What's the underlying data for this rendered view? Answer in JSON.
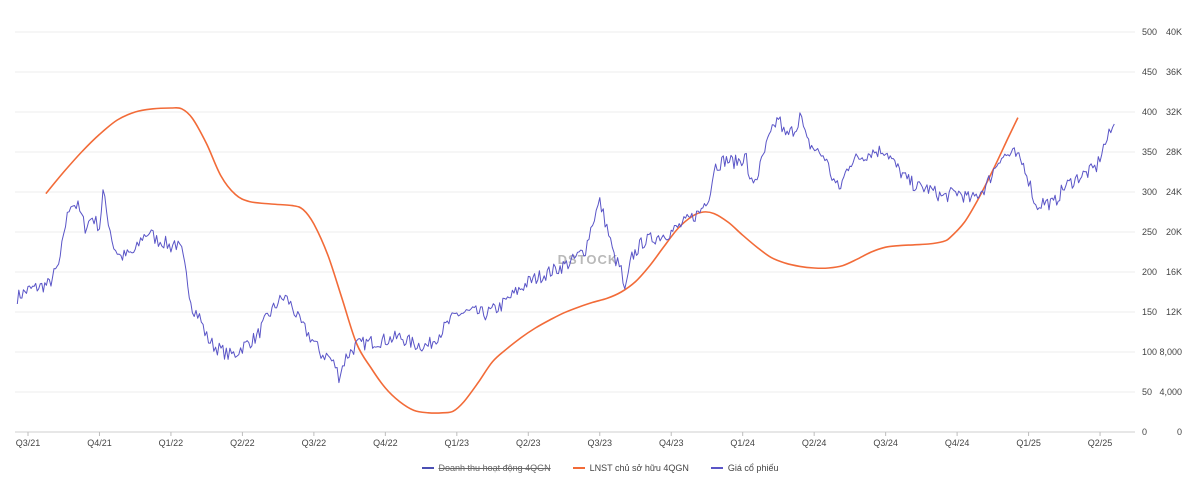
{
  "chart_data": {
    "type": "line",
    "title": "",
    "watermark": "DSTOCK",
    "x_categories": [
      "Q3/21",
      "Q4/21",
      "Q1/22",
      "Q2/22",
      "Q3/22",
      "Q4/22",
      "Q1/23",
      "Q2/23",
      "Q3/23",
      "Q4/23",
      "Q1/24",
      "Q2/24",
      "Q3/24",
      "Q4/24",
      "Q1/25",
      "Q2/25"
    ],
    "axes": {
      "left_labels": [
        "500",
        "450",
        "400",
        "350",
        "300",
        "250",
        "200",
        "150",
        "100",
        "50",
        "0"
      ],
      "right_labels": [
        "40K",
        "36K",
        "32K",
        "28K",
        "24K",
        "20K",
        "16K",
        "12K",
        "8,000",
        "4,000",
        "0"
      ],
      "primary_ylim": [
        0,
        500
      ],
      "secondary_ylim": [
        0,
        40000
      ],
      "grid": true
    },
    "series": [
      {
        "name": "Doanh thu hoạt động 4QGN",
        "color": "#4b4fb3",
        "visible": false,
        "axis": "primary",
        "values": []
      },
      {
        "name": "LNST chủ sở hữu 4QGN",
        "color": "#f26b38",
        "visible": true,
        "axis": "primary",
        "points": [
          [
            0.25,
            298
          ],
          [
            0.5,
            325
          ],
          [
            0.75,
            350
          ],
          [
            1.0,
            372
          ],
          [
            1.25,
            390
          ],
          [
            1.5,
            400
          ],
          [
            1.75,
            404
          ],
          [
            2.0,
            405
          ],
          [
            2.15,
            404
          ],
          [
            2.3,
            392
          ],
          [
            2.5,
            360
          ],
          [
            2.7,
            320
          ],
          [
            2.9,
            297
          ],
          [
            3.1,
            288
          ],
          [
            3.4,
            285
          ],
          [
            3.7,
            283
          ],
          [
            3.85,
            278
          ],
          [
            4.0,
            260
          ],
          [
            4.2,
            220
          ],
          [
            4.4,
            165
          ],
          [
            4.6,
            110
          ],
          [
            4.8,
            80
          ],
          [
            5.0,
            55
          ],
          [
            5.2,
            38
          ],
          [
            5.4,
            27
          ],
          [
            5.6,
            24
          ],
          [
            5.8,
            24
          ],
          [
            5.95,
            26
          ],
          [
            6.1,
            38
          ],
          [
            6.3,
            62
          ],
          [
            6.5,
            88
          ],
          [
            6.7,
            104
          ],
          [
            6.9,
            118
          ],
          [
            7.1,
            130
          ],
          [
            7.3,
            140
          ],
          [
            7.5,
            149
          ],
          [
            7.7,
            156
          ],
          [
            7.9,
            162
          ],
          [
            8.1,
            167
          ],
          [
            8.3,
            175
          ],
          [
            8.5,
            188
          ],
          [
            8.7,
            208
          ],
          [
            8.9,
            232
          ],
          [
            9.1,
            255
          ],
          [
            9.3,
            270
          ],
          [
            9.45,
            275
          ],
          [
            9.6,
            273
          ],
          [
            9.8,
            262
          ],
          [
            10.0,
            246
          ],
          [
            10.2,
            231
          ],
          [
            10.4,
            218
          ],
          [
            10.6,
            211
          ],
          [
            10.8,
            207
          ],
          [
            11.0,
            205
          ],
          [
            11.2,
            205
          ],
          [
            11.4,
            208
          ],
          [
            11.6,
            216
          ],
          [
            11.8,
            225
          ],
          [
            12.0,
            231
          ],
          [
            12.2,
            233
          ],
          [
            12.4,
            234
          ],
          [
            12.6,
            235
          ],
          [
            12.8,
            238
          ],
          [
            12.9,
            243
          ],
          [
            13.1,
            262
          ],
          [
            13.3,
            292
          ],
          [
            13.5,
            327
          ],
          [
            13.7,
            365
          ],
          [
            13.85,
            393
          ]
        ]
      },
      {
        "name": "Giá cổ phiếu",
        "color": "#5a55c7",
        "visible": true,
        "axis": "secondary",
        "points": [
          [
            -0.15,
            13500
          ],
          [
            0.0,
            14200
          ],
          [
            0.15,
            14500
          ],
          [
            0.3,
            14800
          ],
          [
            0.45,
            17000
          ],
          [
            0.5,
            20000
          ],
          [
            0.6,
            23000
          ],
          [
            0.7,
            22500
          ],
          [
            0.8,
            20500
          ],
          [
            0.9,
            21500
          ],
          [
            1.0,
            20500
          ],
          [
            1.05,
            24000
          ],
          [
            1.1,
            22000
          ],
          [
            1.2,
            18500
          ],
          [
            1.3,
            17500
          ],
          [
            1.5,
            18000
          ],
          [
            1.6,
            19500
          ],
          [
            1.7,
            20000
          ],
          [
            1.8,
            19200
          ],
          [
            1.9,
            19000
          ],
          [
            2.0,
            18500
          ],
          [
            2.05,
            19000
          ],
          [
            2.15,
            18000
          ],
          [
            2.3,
            12500
          ],
          [
            2.4,
            11500
          ],
          [
            2.5,
            9500
          ],
          [
            2.6,
            8600
          ],
          [
            2.7,
            8200
          ],
          [
            2.8,
            7700
          ],
          [
            2.9,
            7800
          ],
          [
            3.0,
            8500
          ],
          [
            3.2,
            9500
          ],
          [
            3.35,
            11500
          ],
          [
            3.5,
            13000
          ],
          [
            3.6,
            13500
          ],
          [
            3.7,
            12500
          ],
          [
            3.8,
            11000
          ],
          [
            3.9,
            10000
          ],
          [
            4.0,
            9000
          ],
          [
            4.1,
            7800
          ],
          [
            4.2,
            7600
          ],
          [
            4.3,
            6600
          ],
          [
            4.35,
            5600
          ],
          [
            4.45,
            7500
          ],
          [
            4.6,
            8700
          ],
          [
            4.8,
            9000
          ],
          [
            5.0,
            9200
          ],
          [
            5.2,
            9500
          ],
          [
            5.4,
            8800
          ],
          [
            5.6,
            8600
          ],
          [
            5.8,
            10200
          ],
          [
            6.0,
            11800
          ],
          [
            6.2,
            12000
          ],
          [
            6.4,
            11800
          ],
          [
            6.6,
            12500
          ],
          [
            6.8,
            13800
          ],
          [
            7.0,
            15000
          ],
          [
            7.2,
            15700
          ],
          [
            7.4,
            16300
          ],
          [
            7.6,
            17000
          ],
          [
            7.8,
            18300
          ],
          [
            7.9,
            21000
          ],
          [
            8.0,
            23000
          ],
          [
            8.1,
            20500
          ],
          [
            8.2,
            17500
          ],
          [
            8.3,
            16200
          ],
          [
            8.35,
            13800
          ],
          [
            8.45,
            17500
          ],
          [
            8.6,
            19000
          ],
          [
            8.8,
            19500
          ],
          [
            9.0,
            20000
          ],
          [
            9.2,
            21000
          ],
          [
            9.4,
            22000
          ],
          [
            9.55,
            24000
          ],
          [
            9.6,
            26500
          ],
          [
            9.75,
            27200
          ],
          [
            9.9,
            27000
          ],
          [
            10.05,
            27500
          ],
          [
            10.1,
            24800
          ],
          [
            10.2,
            25500
          ],
          [
            10.35,
            29000
          ],
          [
            10.5,
            31500
          ],
          [
            10.6,
            29500
          ],
          [
            10.75,
            30500
          ],
          [
            10.8,
            31800
          ],
          [
            10.9,
            29000
          ],
          [
            11.05,
            28000
          ],
          [
            11.15,
            27500
          ],
          [
            11.25,
            25500
          ],
          [
            11.35,
            24200
          ],
          [
            11.5,
            27000
          ],
          [
            11.65,
            27500
          ],
          [
            11.8,
            28000
          ],
          [
            12.0,
            28200
          ],
          [
            12.15,
            26500
          ],
          [
            12.3,
            25200
          ],
          [
            12.45,
            24500
          ],
          [
            12.6,
            24300
          ],
          [
            12.8,
            23500
          ],
          [
            13.0,
            24000
          ],
          [
            13.2,
            23200
          ],
          [
            13.4,
            24500
          ],
          [
            13.6,
            27500
          ],
          [
            13.8,
            27800
          ],
          [
            13.95,
            26500
          ],
          [
            14.05,
            24000
          ],
          [
            14.1,
            22500
          ],
          [
            14.2,
            23000
          ],
          [
            14.35,
            22800
          ],
          [
            14.5,
            24500
          ],
          [
            14.7,
            25500
          ],
          [
            14.85,
            26000
          ],
          [
            14.95,
            26500
          ],
          [
            15.05,
            28500
          ],
          [
            15.15,
            30000
          ],
          [
            15.2,
            30800
          ]
        ]
      }
    ]
  },
  "legend": [
    {
      "label": "Doanh thu hoạt động 4QGN",
      "color": "#4b4fb3",
      "hidden": true
    },
    {
      "label": "LNST chủ sở hữu 4QGN",
      "color": "#f26b38",
      "hidden": false
    },
    {
      "label": "Giá cổ phiếu",
      "color": "#5a55c7",
      "hidden": false
    }
  ]
}
